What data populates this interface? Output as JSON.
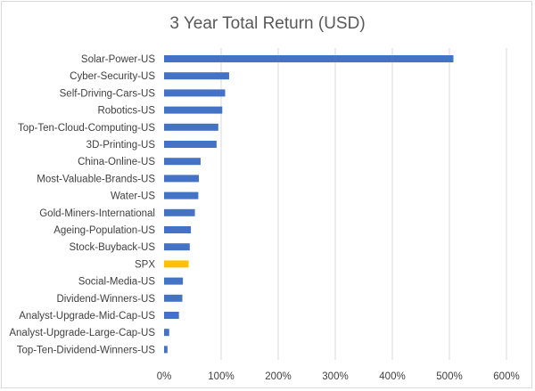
{
  "chart_data": {
    "type": "bar",
    "orientation": "horizontal",
    "title": "3 Year Total Return (USD)",
    "xlabel": "",
    "ylabel": "",
    "categories": [
      "Solar-Power-US",
      "Cyber-Security-US",
      "Self-Driving-Cars-US",
      "Robotics-US",
      "Top-Ten-Cloud-Computing-US",
      "3D-Printing-US",
      "China-Online-US",
      "Most-Valuable-Brands-US",
      "Water-US",
      "Gold-Miners-International",
      "Ageing-Population-US",
      "Stock-Buyback-US",
      "SPX",
      "Social-Media-US",
      "Dividend-Winners-US",
      "Analyst-Upgrade-Mid-Cap-US",
      "Analyst-Upgrade-Large-Cap-US",
      "Top-Ten-Dividend-Winners-US"
    ],
    "values": [
      507,
      114,
      107,
      102,
      95,
      92,
      64,
      61,
      60,
      54,
      47,
      45,
      43,
      33,
      32,
      26,
      9,
      6
    ],
    "xlim": [
      0,
      600
    ],
    "xticks": [
      0,
      100,
      200,
      300,
      400,
      500,
      600
    ],
    "xtick_labels": [
      "0%",
      "100%",
      "200%",
      "300%",
      "400%",
      "500%",
      "600%"
    ],
    "grid": true,
    "legend": "none",
    "colors": {
      "default_bar": "#4472c4",
      "highlight_bar": "#ffc000",
      "highlight_category": "SPX",
      "gridline": "#d9d9d9"
    }
  }
}
